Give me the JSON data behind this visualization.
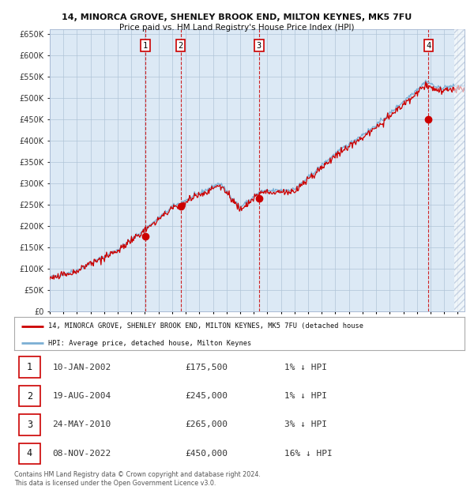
{
  "title1": "14, MINORCA GROVE, SHENLEY BROOK END, MILTON KEYNES, MK5 7FU",
  "title2": "Price paid vs. HM Land Registry's House Price Index (HPI)",
  "background_color": "#dce9f5",
  "hpi_line_color": "#7bafd4",
  "price_line_color": "#cc0000",
  "marker_color": "#cc0000",
  "vline_color": "#cc0000",
  "transactions": [
    {
      "label": "1",
      "date_num": 2002.03,
      "price": 175500
    },
    {
      "label": "2",
      "date_num": 2004.63,
      "price": 245000
    },
    {
      "label": "3",
      "date_num": 2010.39,
      "price": 265000
    },
    {
      "label": "4",
      "date_num": 2022.85,
      "price": 450000
    }
  ],
  "legend_line1": "14, MINORCA GROVE, SHENLEY BROOK END, MILTON KEYNES, MK5 7FU (detached house",
  "legend_line2": "HPI: Average price, detached house, Milton Keynes",
  "table_data": [
    {
      "num": "1",
      "date": "10-JAN-2002",
      "price": "£175,500",
      "hpi": "1% ↓ HPI"
    },
    {
      "num": "2",
      "date": "19-AUG-2004",
      "price": "£245,000",
      "hpi": "1% ↓ HPI"
    },
    {
      "num": "3",
      "date": "24-MAY-2010",
      "price": "£265,000",
      "hpi": "3% ↓ HPI"
    },
    {
      "num": "4",
      "date": "08-NOV-2022",
      "price": "£450,000",
      "hpi": "16% ↓ HPI"
    }
  ],
  "footer": "Contains HM Land Registry data © Crown copyright and database right 2024.\nThis data is licensed under the Open Government Licence v3.0.",
  "ylim": [
    0,
    660000
  ],
  "yticks": [
    0,
    50000,
    100000,
    150000,
    200000,
    250000,
    300000,
    350000,
    400000,
    450000,
    500000,
    550000,
    600000,
    650000
  ],
  "xlim_start": 1995.0,
  "xlim_end": 2025.5
}
